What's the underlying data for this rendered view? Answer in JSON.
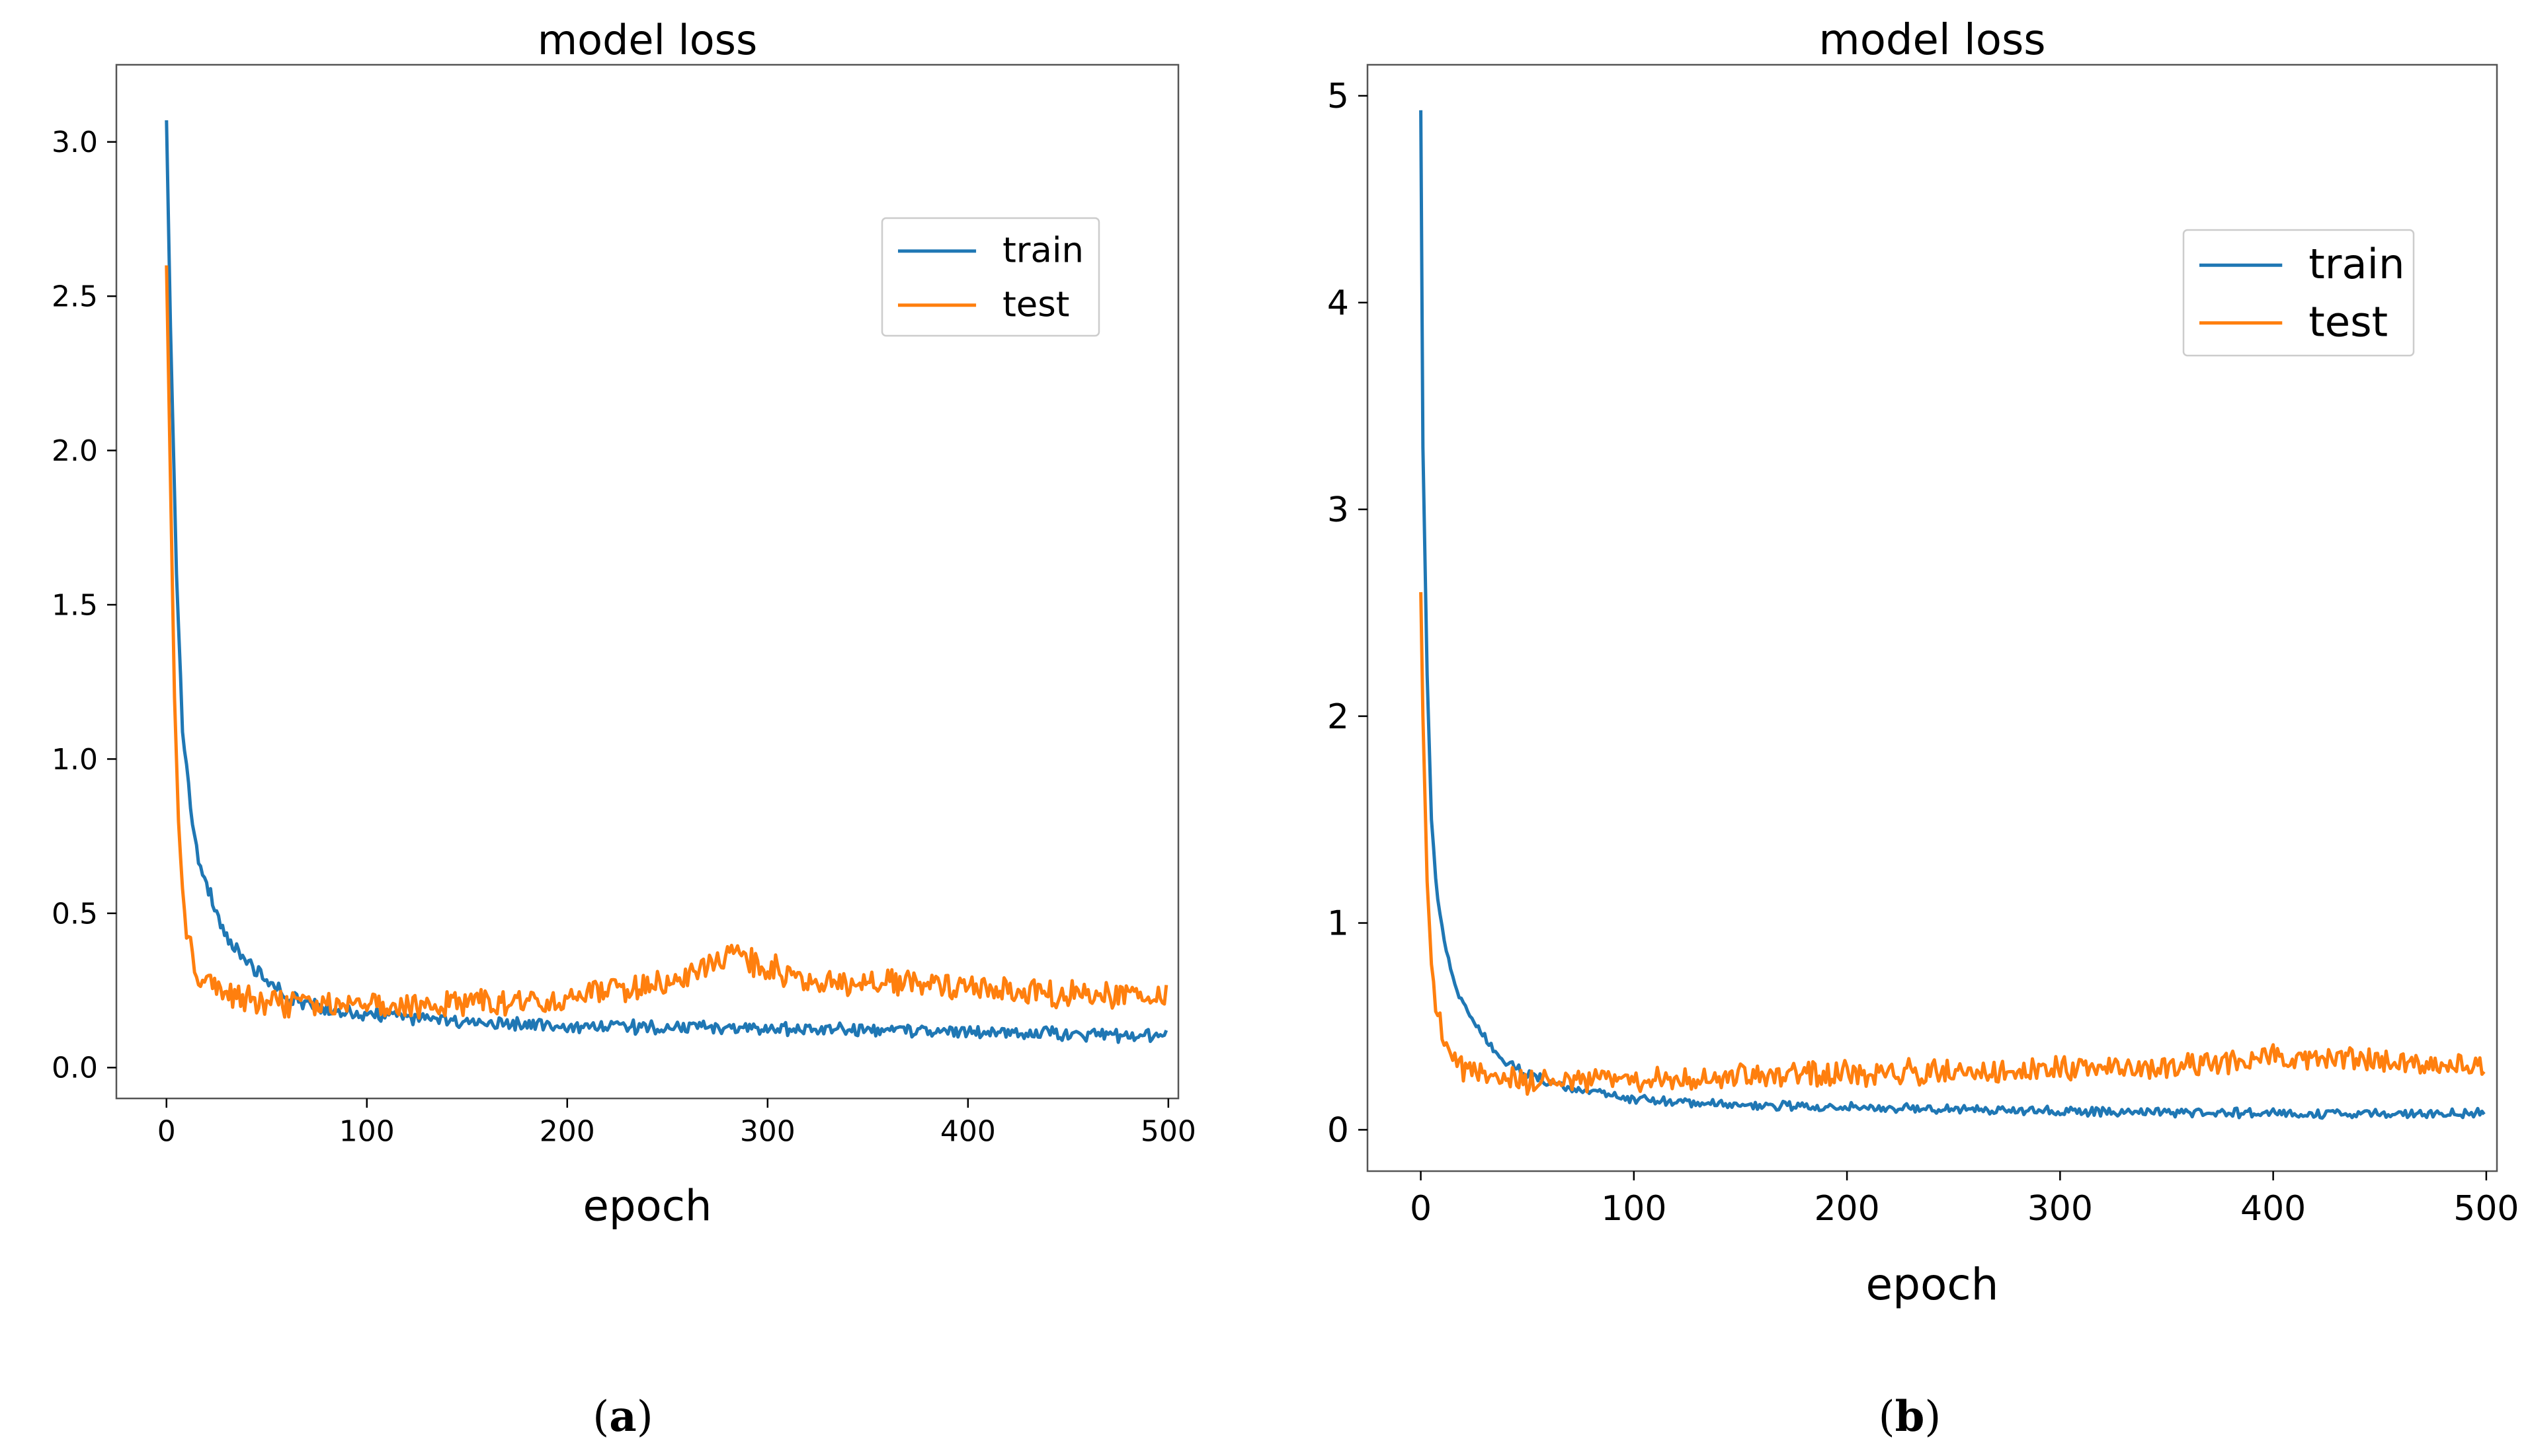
{
  "colors": {
    "train": "#1f77b4",
    "test": "#ff7f0e",
    "axis": "#000000",
    "background": "#ffffff"
  },
  "chart_data": [
    {
      "type": "line",
      "panel_label": "a",
      "title": "model loss",
      "xlabel": "epoch",
      "ylabel": "",
      "xlim": [
        -25,
        505
      ],
      "ylim": [
        -0.1,
        3.25
      ],
      "xticks": [
        0,
        100,
        200,
        300,
        400,
        500
      ],
      "yticks": [
        0.0,
        0.5,
        1.0,
        1.5,
        2.0,
        2.5,
        3.0
      ],
      "ytick_labels": [
        "0.0",
        "0.5",
        "1.0",
        "1.5",
        "2.0",
        "2.5",
        "3.0"
      ],
      "grid": false,
      "legend_position": "upper right",
      "series": [
        {
          "name": "train",
          "color": "#1f77b4",
          "anchors": [
            [
              0,
              3.07
            ],
            [
              2,
              2.4
            ],
            [
              5,
              1.6
            ],
            [
              8,
              1.1
            ],
            [
              12,
              0.85
            ],
            [
              16,
              0.68
            ],
            [
              20,
              0.6
            ],
            [
              25,
              0.5
            ],
            [
              30,
              0.42
            ],
            [
              40,
              0.34
            ],
            [
              50,
              0.28
            ],
            [
              60,
              0.23
            ],
            [
              80,
              0.19
            ],
            [
              100,
              0.17
            ],
            [
              150,
              0.15
            ],
            [
              200,
              0.135
            ],
            [
              250,
              0.13
            ],
            [
              300,
              0.125
            ],
            [
              350,
              0.12
            ],
            [
              400,
              0.115
            ],
            [
              450,
              0.11
            ],
            [
              499,
              0.1
            ]
          ],
          "noise": 0.025
        },
        {
          "name": "test",
          "color": "#ff7f0e",
          "anchors": [
            [
              0,
              2.6
            ],
            [
              2,
              1.9
            ],
            [
              4,
              1.2
            ],
            [
              6,
              0.8
            ],
            [
              8,
              0.55
            ],
            [
              12,
              0.38
            ],
            [
              16,
              0.3
            ],
            [
              25,
              0.25
            ],
            [
              40,
              0.22
            ],
            [
              60,
              0.21
            ],
            [
              100,
              0.2
            ],
            [
              150,
              0.21
            ],
            [
              200,
              0.22
            ],
            [
              240,
              0.27
            ],
            [
              260,
              0.3
            ],
            [
              280,
              0.36
            ],
            [
              300,
              0.33
            ],
            [
              320,
              0.27
            ],
            [
              350,
              0.28
            ],
            [
              380,
              0.27
            ],
            [
              420,
              0.25
            ],
            [
              460,
              0.23
            ],
            [
              499,
              0.24
            ]
          ],
          "noise": 0.05
        }
      ]
    },
    {
      "type": "line",
      "panel_label": "b",
      "title": "model loss",
      "xlabel": "epoch",
      "ylabel": "",
      "xlim": [
        -25,
        505
      ],
      "ylim": [
        -0.2,
        5.15
      ],
      "xticks": [
        0,
        100,
        200,
        300,
        400,
        500
      ],
      "yticks": [
        0,
        1,
        2,
        3,
        4,
        5
      ],
      "ytick_labels": [
        "0",
        "1",
        "2",
        "3",
        "4",
        "5"
      ],
      "grid": false,
      "legend_position": "upper right",
      "series": [
        {
          "name": "train",
          "color": "#1f77b4",
          "anchors": [
            [
              0,
              4.93
            ],
            [
              1,
              3.3
            ],
            [
              3,
              2.2
            ],
            [
              5,
              1.5
            ],
            [
              8,
              1.1
            ],
            [
              12,
              0.85
            ],
            [
              16,
              0.7
            ],
            [
              20,
              0.6
            ],
            [
              30,
              0.45
            ],
            [
              40,
              0.33
            ],
            [
              50,
              0.27
            ],
            [
              70,
              0.2
            ],
            [
              100,
              0.15
            ],
            [
              150,
              0.12
            ],
            [
              200,
              0.11
            ],
            [
              250,
              0.1
            ],
            [
              300,
              0.09
            ],
            [
              350,
              0.085
            ],
            [
              400,
              0.08
            ],
            [
              450,
              0.08
            ],
            [
              499,
              0.08
            ]
          ],
          "noise": 0.025
        },
        {
          "name": "test",
          "color": "#ff7f0e",
          "anchors": [
            [
              0,
              2.6
            ],
            [
              1,
              2.0
            ],
            [
              3,
              1.2
            ],
            [
              5,
              0.8
            ],
            [
              8,
              0.55
            ],
            [
              12,
              0.4
            ],
            [
              20,
              0.3
            ],
            [
              40,
              0.25
            ],
            [
              60,
              0.23
            ],
            [
              100,
              0.24
            ],
            [
              150,
              0.26
            ],
            [
              200,
              0.27
            ],
            [
              250,
              0.28
            ],
            [
              300,
              0.29
            ],
            [
              350,
              0.3
            ],
            [
              400,
              0.35
            ],
            [
              430,
              0.34
            ],
            [
              460,
              0.33
            ],
            [
              499,
              0.3
            ]
          ],
          "noise": 0.07
        }
      ]
    }
  ]
}
